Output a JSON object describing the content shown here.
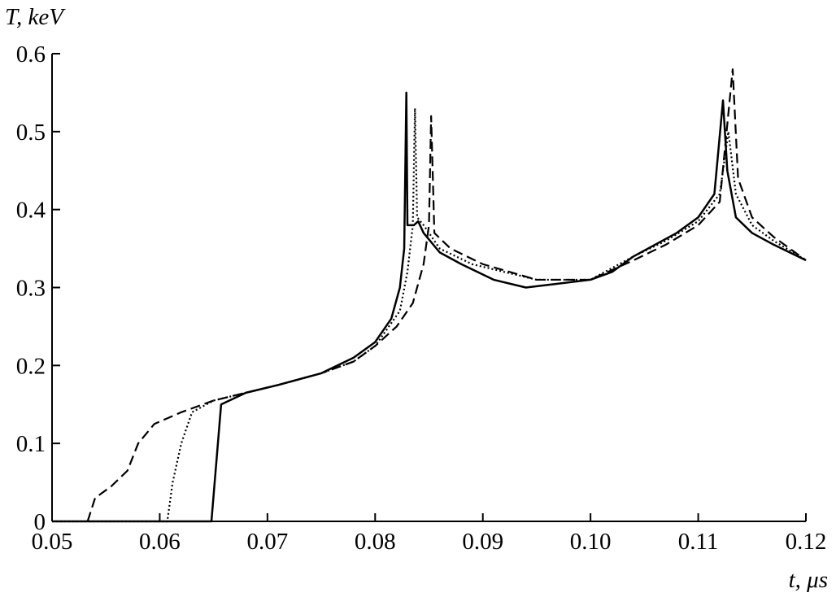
{
  "chart_data": {
    "type": "line",
    "ylabel": "T, keV",
    "xlabel": "t, μs",
    "xlim": [
      0.05,
      0.12
    ],
    "xticks": [
      0.05,
      0.06,
      0.07,
      0.08,
      0.09,
      {
        "value": 0.1,
        "label": "0.10"
      },
      0.11,
      0.12
    ],
    "ylim": [
      0,
      0.6
    ],
    "yticks": [
      0,
      0.1,
      0.2,
      0.3,
      0.4,
      0.5,
      0.6
    ],
    "grid": false,
    "series": [
      {
        "color": "#000000",
        "dash": "solid",
        "x": [
          0.05,
          0.0648,
          0.0657,
          0.068,
          0.071,
          0.075,
          0.078,
          0.08,
          0.0815,
          0.0823,
          0.0827,
          0.0829,
          0.083,
          0.0836,
          0.084,
          0.0845,
          0.086,
          0.088,
          0.091,
          0.094,
          0.097,
          0.1,
          0.102,
          0.104,
          0.106,
          0.108,
          0.11,
          0.1115,
          0.1123,
          0.1127,
          0.1135,
          0.115,
          0.117,
          0.12
        ],
        "values": [
          0,
          0,
          0.15,
          0.165,
          0.175,
          0.19,
          0.21,
          0.23,
          0.26,
          0.3,
          0.35,
          0.55,
          0.38,
          0.38,
          0.385,
          0.37,
          0.345,
          0.33,
          0.31,
          0.3,
          0.305,
          0.31,
          0.32,
          0.34,
          0.355,
          0.37,
          0.39,
          0.42,
          0.54,
          0.45,
          0.39,
          0.37,
          0.355,
          0.335
        ]
      },
      {
        "color": "#000000",
        "dash": "dotted",
        "x": [
          0.05,
          0.0607,
          0.0612,
          0.062,
          0.063,
          0.065,
          0.068,
          0.071,
          0.075,
          0.078,
          0.08,
          0.0823,
          0.083,
          0.0835,
          0.0837,
          0.0839,
          0.0845,
          0.086,
          0.089,
          0.095,
          0.1,
          0.104,
          0.107,
          0.11,
          0.112,
          0.1128,
          0.1135,
          0.115,
          0.117,
          0.12
        ],
        "values": [
          0,
          0,
          0.05,
          0.1,
          0.14,
          0.155,
          0.165,
          0.175,
          0.19,
          0.205,
          0.225,
          0.27,
          0.32,
          0.38,
          0.53,
          0.39,
          0.38,
          0.35,
          0.33,
          0.31,
          0.31,
          0.34,
          0.36,
          0.385,
          0.42,
          0.5,
          0.42,
          0.38,
          0.36,
          0.335
        ]
      },
      {
        "color": "#000000",
        "dash": "dashed",
        "x": [
          0.0533,
          0.054,
          0.0555,
          0.057,
          0.058,
          0.0595,
          0.062,
          0.065,
          0.068,
          0.071,
          0.075,
          0.078,
          0.08,
          0.082,
          0.0835,
          0.0845,
          0.085,
          0.0852,
          0.0855,
          0.087,
          0.09,
          0.095,
          0.1,
          0.104,
          0.107,
          0.11,
          0.112,
          0.1132,
          0.1137,
          0.115,
          0.117,
          0.12
        ],
        "values": [
          0,
          0.03,
          0.045,
          0.065,
          0.1,
          0.125,
          0.14,
          0.155,
          0.165,
          0.175,
          0.19,
          0.205,
          0.225,
          0.25,
          0.28,
          0.33,
          0.38,
          0.52,
          0.37,
          0.35,
          0.33,
          0.31,
          0.31,
          0.335,
          0.355,
          0.38,
          0.41,
          0.58,
          0.44,
          0.39,
          0.365,
          0.335
        ]
      }
    ]
  }
}
